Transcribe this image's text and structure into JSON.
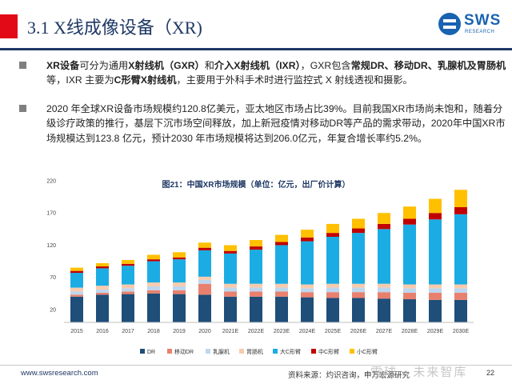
{
  "header": {
    "title": "3.1 X线成像设备（XR)",
    "logo_text": "SWS",
    "logo_sub": "RESEARCH"
  },
  "bullets": [
    {
      "segments": [
        {
          "text": "XR设备",
          "bold": true
        },
        {
          "text": "可分为通用",
          "bold": false
        },
        {
          "text": "X射线机（GXR）",
          "bold": true
        },
        {
          "text": "和",
          "bold": false
        },
        {
          "text": "介入X射线机（IXR）",
          "bold": true
        },
        {
          "text": "，GXR包含",
          "bold": false
        },
        {
          "text": "常规DR、移动DR、乳腺机及胃肠机",
          "bold": true
        },
        {
          "text": "等，IXR 主要为",
          "bold": false
        },
        {
          "text": "C形臂X射线机",
          "bold": true
        },
        {
          "text": "，主要用于外科手术时进行监控式 X 射线透视和摄影。",
          "bold": false
        }
      ]
    },
    {
      "segments": [
        {
          "text": "2020 年全球XR设备市场规模约120.8亿美元，亚太地区市场占比39%。目前我国XR市场尚未饱和，随着分级诊疗政策的推行，基层下沉市场空间释放，加上新冠疫情对移动DR等产品的需求带动，2020年中国XR市场规模达到123.8 亿元，预计2030 年市场规模将达到206.0亿元，年复合增长率约5.2%。",
          "bold": false
        }
      ]
    }
  ],
  "chart_title": "图21：中国XR市场规模（单位：亿元，出厂价计算）",
  "chart_data": {
    "type": "bar",
    "stacked": true,
    "title": "图21：中国XR市场规模（单位：亿元，出厂价计算）",
    "categories": [
      "2015",
      "2016",
      "2017",
      "2018",
      "2019",
      "2020",
      "2021E",
      "2022E",
      "2023E",
      "2024E",
      "2025E",
      "2026E",
      "2027E",
      "2028E",
      "2029E",
      "2030E"
    ],
    "ylim": [
      0,
      220
    ],
    "yticks": [
      20,
      70,
      120,
      170,
      220
    ],
    "grid": false,
    "legend_position": "bottom",
    "series": [
      {
        "name": "DR",
        "color": "#1f4e79",
        "values": [
          40,
          43,
          44,
          45,
          44,
          43,
          40,
          40,
          40,
          39,
          38,
          38,
          37,
          36,
          35,
          35
        ]
      },
      {
        "name": "移动DR",
        "color": "#e9806e",
        "values": [
          3,
          3,
          4,
          5,
          6,
          17,
          8,
          8,
          8,
          8,
          9,
          9,
          10,
          10,
          11,
          11
        ]
      },
      {
        "name": "乳腺机",
        "color": "#bdd7ee",
        "values": [
          5,
          5,
          5,
          6,
          6,
          6,
          6,
          6,
          6,
          6,
          7,
          7,
          7,
          7,
          7,
          7
        ]
      },
      {
        "name": "胃肠机",
        "color": "#f8cbad",
        "values": [
          6,
          6,
          6,
          6,
          6,
          5,
          6,
          6,
          6,
          6,
          6,
          6,
          6,
          6,
          6,
          6
        ]
      },
      {
        "name": "大C形臂",
        "color": "#1cace4",
        "values": [
          23,
          27,
          29,
          33,
          36,
          41,
          47,
          53,
          60,
          67,
          73,
          79,
          85,
          93,
          101,
          109
        ]
      },
      {
        "name": "中C形臂",
        "color": "#c00000",
        "values": [
          3,
          3,
          3,
          3,
          3,
          4,
          4,
          5,
          5,
          6,
          6,
          7,
          8,
          9,
          10,
          11
        ]
      },
      {
        "name": "小C形臂",
        "color": "#ffc000",
        "values": [
          5,
          5,
          6,
          7,
          8,
          8,
          9,
          10,
          11,
          12,
          14,
          15,
          17,
          19,
          22,
          27
        ]
      }
    ]
  },
  "footer": {
    "url": "www.swsresearch.com",
    "source": "资料来源：灼识咨询，申万宏源研究",
    "page": "22",
    "watermark": "雪球 · 未来智库"
  }
}
